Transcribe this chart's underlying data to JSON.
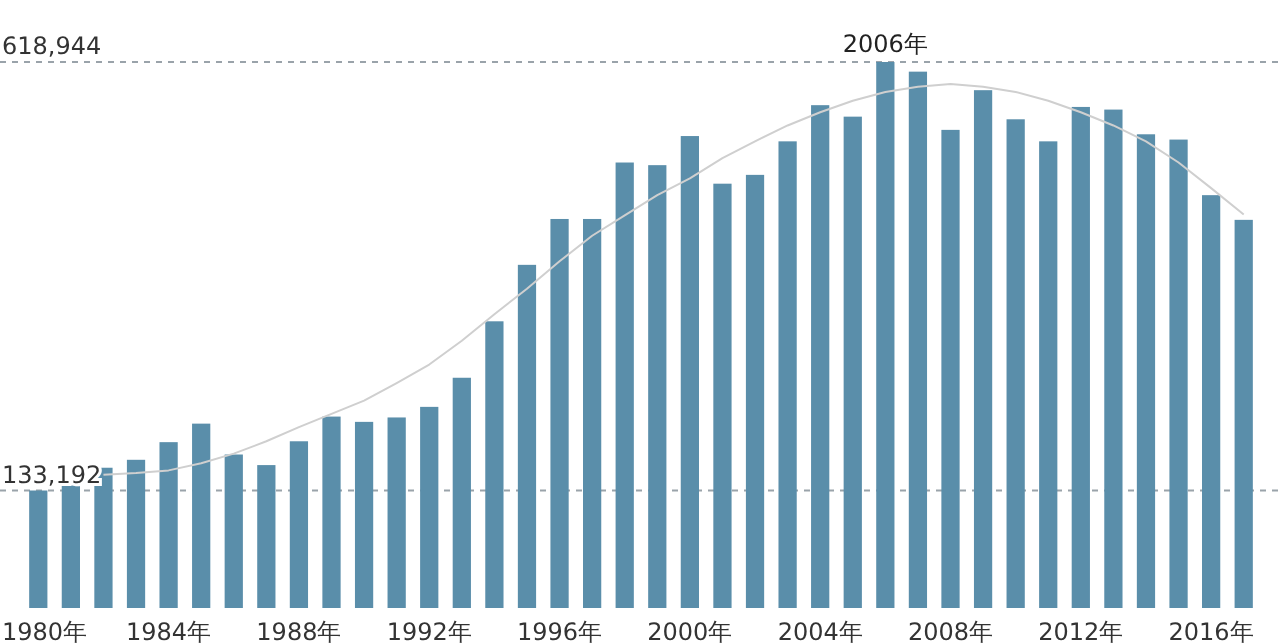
{
  "chart_data": {
    "type": "bar",
    "categories": [
      "1980年",
      null,
      null,
      null,
      "1984年",
      null,
      null,
      null,
      "1988年",
      null,
      null,
      null,
      "1992年",
      null,
      null,
      null,
      "1996年",
      null,
      null,
      null,
      "2000年",
      null,
      null,
      null,
      "2004年",
      null,
      null,
      null,
      "2008年",
      null,
      null,
      null,
      "2012年",
      null,
      null,
      null,
      "2016年",
      null
    ],
    "series": [
      {
        "color": "#5a8eaa",
        "values": [
          133192,
          147000,
          159000,
          168000,
          188000,
          209000,
          174000,
          162000,
          189000,
          217000,
          211000,
          216000,
          228000,
          261000,
          325000,
          389000,
          441000,
          441000,
          505000,
          502000,
          535000,
          481000,
          491000,
          529000,
          570000,
          557000,
          618944,
          608000,
          542000,
          587000,
          554000,
          529000,
          568000,
          565000,
          537000,
          531000,
          468000,
          440000
        ]
      },
      {
        "type": "line",
        "color": "#cfcfcf",
        "values": [
          null,
          null,
          151000,
          153000,
          156000,
          164000,
          175000,
          189000,
          205000,
          220000,
          235000,
          255000,
          276000,
          303000,
          333000,
          362000,
          393000,
          422000,
          445000,
          468000,
          487000,
          510000,
          529000,
          547000,
          562000,
          575000,
          585000,
          591000,
          594000,
          591000,
          585000,
          575000,
          562000,
          547000,
          529000,
          505000,
          476000,
          446000
        ]
      }
    ],
    "ylim": [
      0,
      618944
    ],
    "yticks": [
      {
        "value": 133192,
        "label": "133,192"
      },
      {
        "value": 618944,
        "label": "618,944"
      }
    ],
    "grid": "y",
    "annotations": [
      "2006年"
    ]
  }
}
